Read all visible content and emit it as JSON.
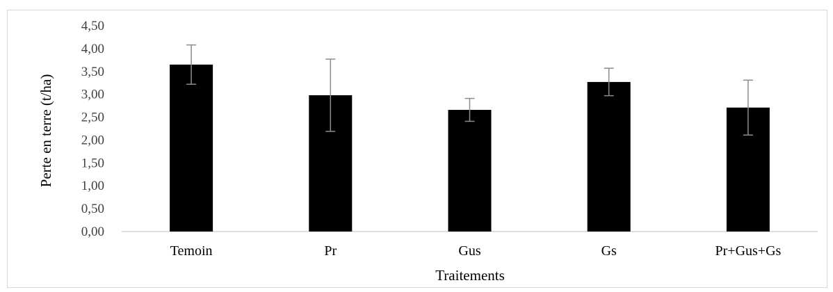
{
  "chart_data": {
    "type": "bar",
    "title": "",
    "xlabel": "Traitements",
    "ylabel": "Perte en terre (t/ha)",
    "categories": [
      "Temoin",
      "Pr",
      "Gus",
      "Gs",
      "Pr+Gus+Gs"
    ],
    "values": [
      3.65,
      2.98,
      2.66,
      3.27,
      2.71
    ],
    "error_high": [
      4.08,
      3.77,
      2.91,
      3.57,
      3.31
    ],
    "error_low": [
      3.22,
      2.19,
      2.41,
      2.97,
      2.11
    ],
    "ylim": [
      0,
      4.5
    ],
    "yticks": [
      "0,00",
      "0,50",
      "1,00",
      "1,50",
      "2,00",
      "2,50",
      "3,00",
      "3,50",
      "4,00",
      "4,50"
    ],
    "ytick_values": [
      0,
      0.5,
      1,
      1.5,
      2,
      2.5,
      3,
      3.5,
      4,
      4.5
    ],
    "grid": false,
    "legend": "none",
    "colors": {
      "bar": "#000000",
      "error_bar": "#8c8c8c",
      "axis": "#bfbfbf",
      "tick_text": "#404040"
    }
  }
}
